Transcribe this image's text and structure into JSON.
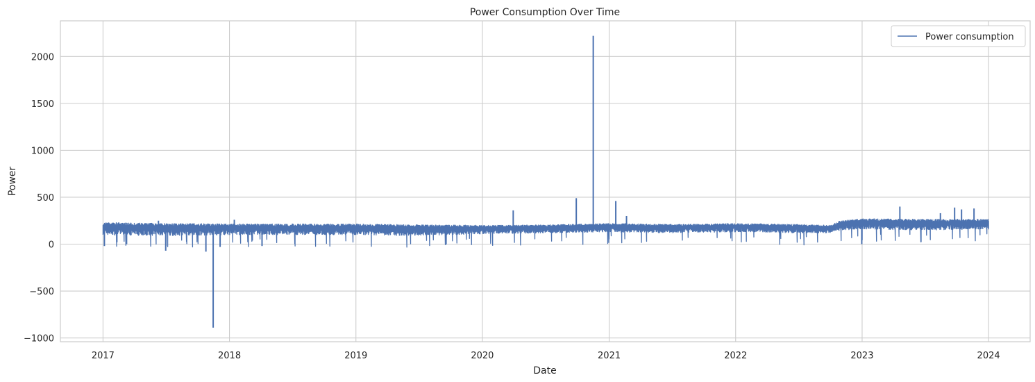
{
  "chart_data": {
    "type": "line",
    "title": "Power Consumption Over Time",
    "xlabel": "Date",
    "ylabel": "Power",
    "xlim": [
      "2016-08-31",
      "2024-04-30"
    ],
    "ylim": [
      -1040,
      2380
    ],
    "x_ticks": [
      "2017",
      "2018",
      "2019",
      "2020",
      "2021",
      "2022",
      "2023",
      "2024"
    ],
    "y_ticks": [
      -1000,
      -500,
      0,
      500,
      1000,
      1500,
      2000
    ],
    "grid": true,
    "legend_position": "top-right",
    "colors": {
      "series": "#4c72b0",
      "grid": "#cccccc",
      "text": "#262626"
    },
    "series": [
      {
        "name": "Power consumption",
        "band": {
          "x": [
            "2017-01-01",
            "2017-07-01",
            "2018-01-01",
            "2018-07-01",
            "2019-01-01",
            "2019-07-01",
            "2020-01-01",
            "2020-07-01",
            "2021-01-01",
            "2021-07-01",
            "2022-01-01",
            "2022-07-01",
            "2022-10-01",
            "2022-11-01",
            "2023-01-01",
            "2023-07-01",
            "2024-01-01"
          ],
          "y_min": [
            100,
            90,
            100,
            100,
            100,
            90,
            110,
            120,
            130,
            120,
            130,
            120,
            120,
            150,
            160,
            150,
            160
          ],
          "y_max": [
            230,
            220,
            215,
            215,
            215,
            205,
            200,
            205,
            220,
            210,
            220,
            210,
            200,
            250,
            270,
            265,
            265
          ]
        },
        "spikes": [
          {
            "x": "2017-01-05",
            "y": -20
          },
          {
            "x": "2017-02-10",
            "y": 20
          },
          {
            "x": "2017-06-10",
            "y": 250
          },
          {
            "x": "2017-07-01",
            "y": -70
          },
          {
            "x": "2017-10-25",
            "y": -80
          },
          {
            "x": "2017-11-15",
            "y": -890
          },
          {
            "x": "2017-12-05",
            "y": -30
          },
          {
            "x": "2018-01-15",
            "y": 260
          },
          {
            "x": "2018-04-05",
            "y": -20
          },
          {
            "x": "2020-03-30",
            "y": 360
          },
          {
            "x": "2020-09-28",
            "y": 490
          },
          {
            "x": "2020-11-16",
            "y": 2220
          },
          {
            "x": "2021-01-20",
            "y": 460
          },
          {
            "x": "2021-02-20",
            "y": 300
          },
          {
            "x": "2022-12-31",
            "y": 0
          },
          {
            "x": "2023-04-20",
            "y": 400
          },
          {
            "x": "2023-08-15",
            "y": 330
          },
          {
            "x": "2023-09-25",
            "y": 390
          },
          {
            "x": "2023-10-15",
            "y": 370
          },
          {
            "x": "2023-11-20",
            "y": 380
          }
        ]
      }
    ]
  }
}
